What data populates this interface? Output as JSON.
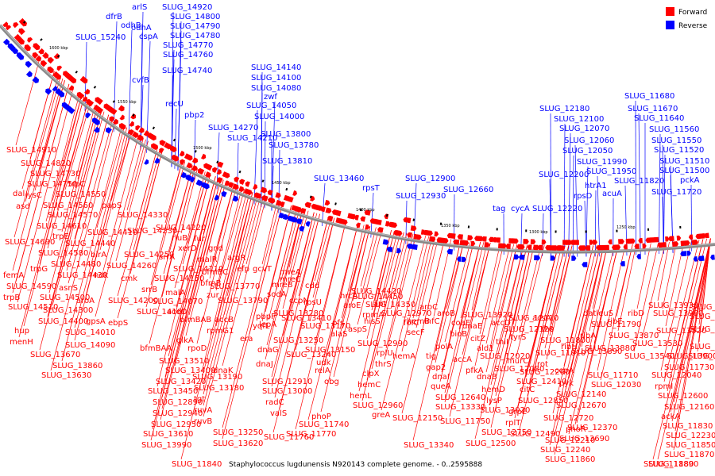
{
  "caption": "Staphylococcus lugdunensis N920143 complete genome. - 0..2595888",
  "legend": {
    "forward": {
      "label": "Forward",
      "color": "#ff0000"
    },
    "reverse": {
      "label": "Reverse",
      "color": "#0000ff"
    }
  },
  "kbp_ticks": [
    "1600 kbp",
    "1550 kbp",
    "1500 kbp",
    "1450 kbp",
    "1400 kbp",
    "1350 kbp",
    "1300 kbp",
    "1250 kbp"
  ],
  "reverse_labels": [
    "arlS",
    "dfrB",
    "odhA",
    "odhB",
    "cspA",
    "SLUG_14920",
    "SLUG_14800",
    "SLUG_14790",
    "SLUG_14780",
    "SLUG_14770",
    "SLUG_14760",
    "SLUG_15240",
    "cvfB",
    "SLUG_14740",
    "recU",
    "pbp2",
    "SLUG_14140",
    "SLUG_14100",
    "SLUG_14080",
    "zwf",
    "SLUG_14050",
    "SLUG_14000",
    "SLUG_14270",
    "SLUG_14210",
    "SLUG_13800",
    "SLUG_13780",
    "SLUG_13810",
    "SLUG_13460",
    "rpsT",
    "SLUG_12900",
    "SLUG_12930",
    "SLUG_12660",
    "tag",
    "cycA",
    "SLUG_12220",
    "SLUG_12180",
    "SLUG_12100",
    "SLUG_12070",
    "SLUG_12060",
    "SLUG_12050",
    "SLUG_11990",
    "SLUG_11950",
    "SLUG_12200",
    "htrA1",
    "rpsD",
    "acuA",
    "SLUG_11680",
    "SLUG_11670",
    "SLUG_11640",
    "SLUG_11560",
    "SLUG_11550",
    "SLUG_11520",
    "SLUG_11510",
    "SLUG_11500",
    "SLUG_11820",
    "SLUG_11720",
    "pckA"
  ],
  "forward_labels": [
    "SLUG_14910",
    "SLUG_14820",
    "SLUG_14730",
    "SLUG_14750",
    "trpC",
    "lysC",
    "dal",
    "asd",
    "SLUG_14550",
    "papS",
    "SLUG_14560",
    "SLUG_14570",
    "SLUG_14330",
    "SLUG_14610",
    "trpE",
    "SLUG_14410",
    "SLUG_14690",
    "SLUG_14440",
    "SLUG_14230",
    "SLUG_14220",
    "rluB",
    "fur",
    "trpG",
    "SLUG_14580",
    "birA",
    "SLUG_14250",
    "xerD",
    "gnd",
    "srrA",
    "SLUG_14480",
    "SLUG_14260",
    "malR",
    "argR",
    "femA",
    "SLUG_14430",
    "ndk",
    "cmk",
    "SLUG_14150",
    "bfmBC",
    "efp",
    "SLUG_14590",
    "asnS",
    "SLUG_14110",
    "srrB",
    "bfmB",
    "gcvT",
    "trpB",
    "SLUG_14500",
    "SLUG_13770",
    "mreC",
    "mreA",
    "SLUG_14510",
    "aroA",
    "SLUG_14200",
    "SLUG_14070",
    "malA",
    "zur",
    "mreB",
    "cdd",
    "SLUG_14300",
    "SLUG_14160",
    "SLUG_13790",
    "sodA",
    "ccpN",
    "SLUG_14400",
    "gpsA",
    "ebpS",
    "bfmBAB",
    "accB",
    "pbpF",
    "rpsU",
    "hrcA",
    "SLUG_14420",
    "hup",
    "SLUG_14010",
    "accC",
    "rpmG1",
    "yqfL",
    "SLUG_13410",
    "lepA",
    "aroE",
    "SLUG_14450",
    "menH",
    "SLUG_14090",
    "bfmBAA",
    "glkA",
    "era",
    "SLUG_13280",
    "SLUG_13170",
    "pfs",
    "SLUG_14350",
    "SLUG_13670",
    "rpoD",
    "dnaG",
    "SLUG_13250",
    "alaS",
    "SLUG_12970",
    "apt",
    "aroC",
    "SLUG_13860",
    "SLUG_13510",
    "dnaJ",
    "SLUG_13150",
    "SLUG_12990",
    "aspS",
    "rpmA",
    "hemB",
    "aroB",
    "SLUG_13920",
    "SLUG_13630",
    "SLUG_13400",
    "dnaK",
    "SLUG_13240",
    "udk",
    "hisS",
    "secF",
    "folC",
    "infC",
    "coaE",
    "accD",
    "SLUG_12110",
    "acsA",
    "datleuS",
    "ribD",
    "SLUG_13930",
    "SLUG_13650",
    "SLUG_13420",
    "SLUG_13190",
    "SLUG_12910",
    "relA",
    "rplU",
    "hemA",
    "bioB",
    "dnaE",
    "SLUG_12120",
    "fhs",
    "SLUG_11790",
    "ribE",
    "SLUG_13980",
    "SLUG_13680",
    "SLUG_13450",
    "SLUG_13180",
    "SLUG_13000",
    "obg",
    "thrS",
    "polA",
    "citZ",
    "thiI",
    "tyrS",
    "SLUG_11800",
    "ribA",
    "SLUG_13870",
    "SLUG_13520",
    "SLUG_13200",
    "SLUG_12890",
    "tgt",
    "radC",
    "clpX",
    "tig",
    "accA",
    "ald1",
    "SLUG_12020",
    "SLUG_11810",
    "ribH",
    "SLUG_13880",
    "SLUG_13530",
    "SLUG_13210",
    "SLUG_12940",
    "ruvA",
    "valS",
    "hemC",
    "gap2",
    "pfkA",
    "SLUG_12080",
    "murC",
    "rot",
    "SLUG_13890",
    "SLUG_13540",
    "SLUG_13010",
    "SLUG_12950",
    "ruvB",
    "hemL",
    "dnaI",
    "dnaB",
    "SLUG_12260",
    "ccpA",
    "SLUG_11710",
    "SLUG_13900",
    "SLUG_13610",
    "SLUG_13250",
    "SLUG_12960",
    "queA",
    "hemD",
    "SLUG_12410",
    "pyk",
    "SLUG_12030",
    "SLUG_11730",
    "SLUG_13990",
    "SLUG_13620",
    "greA",
    "SLUG_12640",
    "lysP",
    "citC",
    "SLUG_12140",
    "SLUG_12040",
    "SLUG_11740",
    "SLUG_13330",
    "SLUG_13020",
    "SLUG_12850",
    "SLUG_12670",
    "rpmI",
    "phoP",
    "SLUG_12150",
    "SLUG_11750",
    "grpE",
    "SLUG_12720",
    "SLUG_12600",
    "rplT",
    "phoR",
    "SLUG_12160",
    "SLUG_11760",
    "SLUG_13340",
    "SLUG_12750",
    "SLUG_12490",
    "SLUG_12370",
    "ackA",
    "SLUG_11770",
    "SLUG_12500",
    "SLUG_12210",
    "SLUG_11830",
    "SLUG_13690",
    "SLUG_12230",
    "SLUG_11840",
    "SLUG_12240",
    "SLUG_11850",
    "SLUG_11860",
    "SLUG_11870",
    "SLUG_11880",
    "SLUG_11890"
  ]
}
